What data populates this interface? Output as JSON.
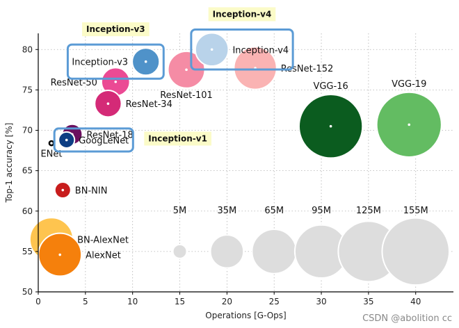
{
  "chart_data": {
    "type": "scatter",
    "xlabel": "Operations [G-Ops]",
    "ylabel": "Top-1 accuracy [%]",
    "xlim": [
      0,
      44
    ],
    "ylim": [
      50,
      82
    ],
    "xticks": [
      0,
      5,
      10,
      15,
      20,
      25,
      30,
      35,
      40
    ],
    "yticks": [
      50,
      55,
      60,
      65,
      70,
      75,
      80
    ],
    "grid": true,
    "points": [
      {
        "name": "Inception-v3",
        "x": 11.4,
        "y": 78.5,
        "params_M": 23,
        "color": "#4f92c9",
        "label_pos": "left"
      },
      {
        "name": "Inception-v4",
        "x": 18.4,
        "y": 80.0,
        "params_M": 35,
        "color": "#b9d3ea",
        "label_pos": "right"
      },
      {
        "name": "ResNet-101",
        "x": 15.7,
        "y": 77.5,
        "params_M": 44,
        "color": "#f58ca5",
        "label_pos": "below"
      },
      {
        "name": "ResNet-152",
        "x": 23.0,
        "y": 77.7,
        "params_M": 60,
        "color": "#fab3b3",
        "label_pos": "right"
      },
      {
        "name": "ResNet-50",
        "x": 8.2,
        "y": 76.0,
        "params_M": 25,
        "color": "#eb4a94",
        "label_pos": "left"
      },
      {
        "name": "ResNet-34",
        "x": 7.4,
        "y": 73.3,
        "params_M": 22,
        "color": "#d42a77",
        "label_pos": "right"
      },
      {
        "name": "ResNet-18",
        "x": 3.6,
        "y": 69.5,
        "params_M": 12,
        "color": "#6b0f5e",
        "label_pos": "right"
      },
      {
        "name": "GoogLeNet",
        "x": 3.0,
        "y": 68.8,
        "params_M": 7,
        "color": "#0d3e83",
        "label_pos": "right"
      },
      {
        "name": "ENet",
        "x": 1.4,
        "y": 68.4,
        "params_M": 1,
        "color": "#000000",
        "label_pos": "below"
      },
      {
        "name": "VGG-16",
        "x": 31.0,
        "y": 70.5,
        "params_M": 138,
        "color": "#0b5c1f",
        "label_pos": "above"
      },
      {
        "name": "VGG-19",
        "x": 39.3,
        "y": 70.7,
        "params_M": 144,
        "color": "#63bc62",
        "label_pos": "above"
      },
      {
        "name": "BN-NIN",
        "x": 2.6,
        "y": 62.6,
        "params_M": 7,
        "color": "#c81d1d",
        "label_pos": "right"
      },
      {
        "name": "BN-AlexNet",
        "x": 1.4,
        "y": 56.5,
        "params_M": 62,
        "color": "#fec44f",
        "label_pos": "right"
      },
      {
        "name": "AlexNet",
        "x": 2.3,
        "y": 54.6,
        "params_M": 61,
        "color": "#f5800c",
        "label_pos": "right"
      }
    ],
    "size_legend": {
      "color": "#dddddd",
      "y": 55,
      "items": [
        {
          "label": "5M",
          "x": 15,
          "params_M": 5
        },
        {
          "label": "35M",
          "x": 20,
          "params_M": 35
        },
        {
          "label": "65M",
          "x": 25,
          "params_M": 65
        },
        {
          "label": "95M",
          "x": 30,
          "params_M": 95
        },
        {
          "label": "125M",
          "x": 35,
          "params_M": 125
        },
        {
          "label": "155M",
          "x": 40,
          "params_M": 155
        }
      ]
    },
    "callouts": [
      {
        "text": "Inception-v3",
        "highlight": "Inception-v3",
        "boxed": [
          "Inception-v3"
        ]
      },
      {
        "text": "Inception-v4",
        "highlight": "Inception-v4",
        "boxed": [
          "Inception-v4"
        ]
      },
      {
        "text": "Inception-v1",
        "highlight": "GoogLeNet",
        "boxed": [
          "GoogLeNet"
        ]
      }
    ],
    "callout_color": "#fbfbc8",
    "box_color": "#5b9bd5"
  },
  "watermark": "CSDN @abolition cc"
}
